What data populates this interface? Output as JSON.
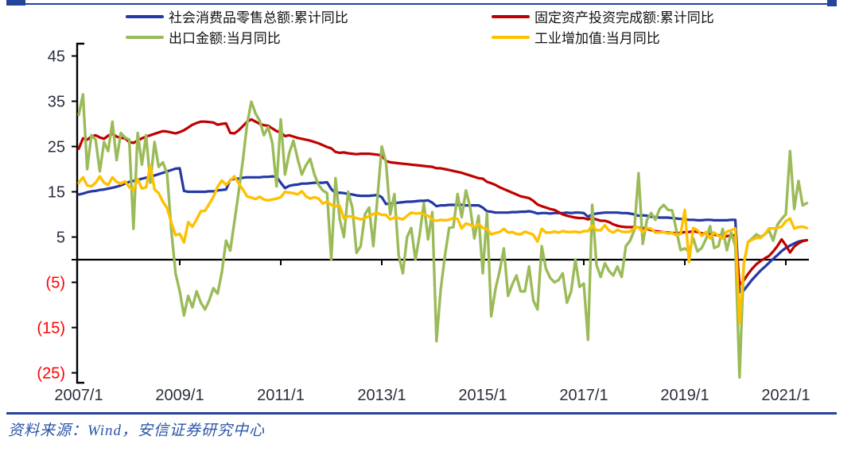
{
  "page": {
    "background": "#ffffff"
  },
  "header_rule": {
    "color": "#24439B"
  },
  "legend": {
    "items": [
      {
        "label": "社会消费品零售总额:累计同比",
        "color": "#2438A6"
      },
      {
        "label": "固定资产投资完成额:累计同比",
        "color": "#C00000"
      },
      {
        "label": "出口金额:当月同比",
        "color": "#9BBB59"
      },
      {
        "label": "工业增加值:当月同比",
        "color": "#FFC000"
      }
    ]
  },
  "footer": {
    "source_text": "资料来源：Wind，安信证券研究中心",
    "rule_color": "#24439B",
    "text_color": "#2A55A8"
  },
  "chart_data": {
    "type": "line",
    "title": "",
    "xlabel": "",
    "ylabel": "",
    "x_frequency": "monthly",
    "x_start": "2007/01",
    "x_end": "2021/06",
    "ylim": [
      -27,
      47.5
    ],
    "grid": false,
    "zero_line": true,
    "legend_position": "top",
    "x_ticks": [
      {
        "month_index": 0,
        "label": "2007/1"
      },
      {
        "month_index": 24,
        "label": "2009/1"
      },
      {
        "month_index": 48,
        "label": "2011/1"
      },
      {
        "month_index": 72,
        "label": "2013/1"
      },
      {
        "month_index": 96,
        "label": "2015/1"
      },
      {
        "month_index": 120,
        "label": "2017/1"
      },
      {
        "month_index": 144,
        "label": "2019/1"
      },
      {
        "month_index": 168,
        "label": "2021/1"
      }
    ],
    "y_ticks": [
      {
        "v": 45,
        "label": "45"
      },
      {
        "v": 35,
        "label": "35"
      },
      {
        "v": 25,
        "label": "25"
      },
      {
        "v": 15,
        "label": "15"
      },
      {
        "v": 5,
        "label": "5"
      },
      {
        "v": 0,
        "label": ""
      },
      {
        "v": -5,
        "label": "(5)"
      },
      {
        "v": -15,
        "label": "(15)"
      },
      {
        "v": -25,
        "label": "(25)"
      }
    ],
    "positive_label_color": "#2A2E3C",
    "negative_label_color": "#FF0000",
    "axis_color": "#000000",
    "series": [
      {
        "name": "社会消费品零售总额:累计同比",
        "color": "#2438A6",
        "width": 3.2,
        "values": [
          14.4,
          14.6,
          14.9,
          15.1,
          15.2,
          15.4,
          15.5,
          15.7,
          15.9,
          16.1,
          16.4,
          16.8,
          17.2,
          17.4,
          17.6,
          17.9,
          18.1,
          18.4,
          18.6,
          18.9,
          19.2,
          19.5,
          19.8,
          20.1,
          20.2,
          15.2,
          15.0,
          15.0,
          15.0,
          15.0,
          15.0,
          15.1,
          15.1,
          15.3,
          15.4,
          15.5,
          17.6,
          17.9,
          17.9,
          18.1,
          18.2,
          18.2,
          18.2,
          18.2,
          18.3,
          18.3,
          18.4,
          18.3,
          17.0,
          15.8,
          16.3,
          16.5,
          16.6,
          16.8,
          16.8,
          16.9,
          17.0,
          17.0,
          17.0,
          17.1,
          15.6,
          14.7,
          14.8,
          14.7,
          14.5,
          14.4,
          14.2,
          14.1,
          14.1,
          14.1,
          14.2,
          14.3,
          13.8,
          12.3,
          12.4,
          12.5,
          12.6,
          12.7,
          12.8,
          12.8,
          12.9,
          13.0,
          13.0,
          13.1,
          12.6,
          11.8,
          12.0,
          12.0,
          12.1,
          12.1,
          12.1,
          12.1,
          12.0,
          12.0,
          12.0,
          12.0,
          11.5,
          10.7,
          10.6,
          10.4,
          10.4,
          10.4,
          10.4,
          10.5,
          10.5,
          10.6,
          10.6,
          10.7,
          10.5,
          10.2,
          10.3,
          10.3,
          10.2,
          10.3,
          10.3,
          10.3,
          10.4,
          10.3,
          10.4,
          10.4,
          10.3,
          9.5,
          10.0,
          10.2,
          10.3,
          10.4,
          10.4,
          10.4,
          10.4,
          10.3,
          10.3,
          10.2,
          10.0,
          9.7,
          9.8,
          9.7,
          9.5,
          9.4,
          9.3,
          9.3,
          9.3,
          9.2,
          9.1,
          9.0,
          8.9,
          8.8,
          8.8,
          8.7,
          8.7,
          8.8,
          8.8,
          8.7,
          8.7,
          8.7,
          8.7,
          8.8,
          8.8,
          -7.2,
          -6.8,
          -5.6,
          -4.4,
          -3.4,
          -2.4,
          -1.6,
          -0.7,
          0.2,
          1.0,
          1.9,
          2.6,
          3.1,
          3.6,
          4.0,
          4.2,
          4.3
        ]
      },
      {
        "name": "固定资产投资完成额:累计同比",
        "color": "#C00000",
        "width": 3.2,
        "values": [
          24.5,
          26.8,
          26.5,
          27.2,
          27.5,
          27.0,
          26.7,
          27.4,
          27.8,
          27.2,
          26.9,
          26.8,
          26.0,
          25.8,
          26.3,
          26.8,
          27.2,
          27.5,
          27.8,
          28.1,
          28.4,
          28.3,
          28.1,
          27.9,
          28.2,
          28.6,
          29.2,
          29.8,
          30.2,
          30.5,
          30.5,
          30.4,
          30.3,
          29.8,
          30.0,
          30.1,
          28.0,
          27.9,
          28.6,
          29.5,
          30.5,
          31.0,
          30.5,
          30.0,
          29.7,
          29.6,
          29.0,
          28.4,
          28.1,
          27.3,
          27.5,
          27.2,
          26.9,
          26.7,
          26.5,
          26.3,
          26.0,
          25.7,
          25.3,
          24.9,
          24.6,
          23.8,
          23.6,
          23.7,
          23.5,
          23.4,
          23.3,
          23.4,
          23.4,
          23.4,
          23.3,
          23.2,
          23.0,
          21.8,
          21.5,
          21.4,
          21.3,
          21.2,
          21.1,
          21.0,
          20.9,
          20.8,
          20.7,
          20.6,
          20.5,
          20.2,
          20.2,
          20.0,
          19.8,
          19.6,
          19.4,
          19.2,
          18.9,
          18.6,
          18.3,
          18.0,
          17.9,
          17.2,
          16.9,
          16.5,
          16.0,
          15.6,
          15.2,
          14.8,
          14.4,
          14.0,
          13.8,
          13.6,
          13.0,
          12.2,
          11.8,
          11.5,
          11.2,
          11.0,
          10.5,
          10.0,
          9.7,
          9.5,
          9.3,
          9.2,
          9.2,
          8.9,
          9.2,
          8.9,
          8.6,
          8.6,
          8.3,
          7.8,
          7.5,
          7.3,
          7.2,
          7.2,
          7.2,
          7.1,
          7.0,
          6.8,
          6.5,
          6.3,
          6.2,
          6.1,
          6.0,
          5.9,
          5.9,
          5.9,
          6.1,
          6.1,
          6.3,
          6.1,
          5.8,
          5.8,
          5.7,
          5.5,
          5.4,
          5.2,
          5.2,
          5.4,
          5.4,
          -5.5,
          -4.6,
          -3.2,
          -2.0,
          -1.0,
          -0.3,
          0.3,
          0.8,
          1.8,
          3.0,
          4.5,
          3.2,
          1.6,
          2.9,
          3.6,
          4.1,
          4.3
        ]
      },
      {
        "name": "出口金额:当月同比",
        "color": "#9BBB59",
        "width": 3.4,
        "values": [
          32,
          36.5,
          20,
          27.5,
          26.5,
          19.5,
          26,
          24,
          30.5,
          22,
          28,
          27,
          26.5,
          6.8,
          28,
          21,
          27.5,
          17,
          26,
          20.5,
          21.5,
          19,
          6.5,
          -3,
          -7,
          -12.3,
          -8,
          -10.5,
          -7,
          -9.5,
          -11,
          -9,
          -6.3,
          -7.5,
          -2.8,
          4.2,
          2,
          8.5,
          15,
          22,
          30,
          34.9,
          32.3,
          30.7,
          27.5,
          29.3,
          25.8,
          16.2,
          31,
          18.8,
          23.5,
          26.3,
          22.3,
          18.8,
          20.9,
          22.3,
          18.8,
          16.5,
          15.3,
          14.7,
          0,
          18,
          9,
          5,
          15,
          11.5,
          1.5,
          3,
          10,
          11.5,
          3,
          14,
          25,
          21.5,
          10,
          14.5,
          1,
          -3,
          5,
          7,
          0,
          5.5,
          12.5,
          4.5,
          10.5,
          -18,
          -6.6,
          0.9,
          7,
          7.2,
          14.5,
          9.4,
          15.3,
          11.6,
          4.7,
          9.7,
          -3,
          10.3,
          -12.5,
          -6.5,
          -2.5,
          2.5,
          -8,
          -5.5,
          -3.5,
          -7,
          -7,
          -1.5,
          -9,
          -11,
          3,
          -2,
          -4,
          -5,
          -4.5,
          -3,
          -9.5,
          -7,
          0,
          -6,
          -5.3,
          -17.7,
          12.1,
          -1.1,
          -3.8,
          -0.8,
          -2.5,
          -3.5,
          -1.5,
          -3.8,
          3,
          4.2,
          6.5,
          19.1,
          3.5,
          8.8,
          10.3,
          8.8,
          11.2,
          12.1,
          11,
          10.9,
          6.5,
          2.1,
          2.5,
          1.8,
          4.7,
          1.8,
          2.6,
          4.5,
          7.4,
          2.6,
          3.0,
          6.8,
          2.1,
          6.0,
          3,
          -26,
          -1,
          3.9,
          4.7,
          5.6,
          5.0,
          5.6,
          6.5,
          4.2,
          7.7,
          9,
          10,
          24,
          11.2,
          17.4,
          12,
          12.5
        ]
      },
      {
        "name": "工业增加值:当月同比",
        "color": "#FFC000",
        "width": 3.4,
        "values": [
          17.0,
          18.2,
          16.4,
          16.2,
          17.0,
          18.4,
          17.0,
          16.5,
          18.2,
          17.2,
          16.8,
          17.3,
          16.0,
          15.4,
          17.8,
          15.7,
          16.0,
          20.8,
          15.5,
          14.7,
          12.8,
          11.4,
          8.2,
          5.4,
          5.7,
          3.8,
          8.3,
          7.3,
          8.9,
          10.7,
          10.8,
          12.3,
          13.9,
          16.1,
          17.5,
          16.5,
          17.5,
          18.4,
          16.8,
          15.5,
          14.0,
          13.7,
          13.4,
          13.9,
          13.3,
          13.1,
          13.3,
          13.5,
          13.8,
          15.0,
          14.8,
          14.7,
          14.4,
          15.1,
          14.0,
          13.5,
          13.8,
          13.5,
          12.4,
          12.8,
          12.1,
          11.8,
          11.9,
          9.1,
          9.6,
          9.5,
          9.2,
          8.9,
          9.2,
          9.6,
          10.1,
          10.3,
          9.9,
          9.9,
          8.9,
          9.3,
          9.2,
          8.9,
          9.7,
          10.4,
          10.2,
          10.3,
          10.0,
          9.7,
          8.8,
          8.6,
          8.8,
          8.7,
          8.8,
          9.2,
          9.0,
          6.9,
          8.0,
          7.7,
          7.2,
          7.9,
          7.0,
          6.8,
          5.6,
          5.9,
          6.1,
          6.8,
          6.0,
          6.1,
          5.7,
          5.6,
          6.2,
          5.9,
          5.5,
          4.0,
          6.8,
          6.0,
          6.0,
          6.2,
          6.0,
          6.3,
          6.1,
          6.1,
          6.2,
          6.0,
          6.3,
          6.3,
          7.6,
          6.5,
          6.5,
          7.6,
          6.4,
          6.0,
          6.6,
          6.2,
          6.1,
          6.2,
          7.0,
          7.2,
          6.0,
          7.0,
          6.8,
          6.0,
          6.0,
          6.1,
          5.8,
          5.9,
          5.4,
          5.7,
          11.0,
          -0.5,
          7.0,
          6.5,
          5.3,
          6.1,
          4.7,
          6.0,
          5.3,
          4.7,
          6.2,
          6.5,
          6.9,
          -14.0,
          -1.1,
          3.9,
          4.4,
          4.8,
          4.8,
          5.6,
          6.9,
          6.9,
          7.0,
          7.3,
          8.5,
          9.1,
          6.9,
          7.2,
          7.3,
          7.0
        ]
      }
    ]
  }
}
